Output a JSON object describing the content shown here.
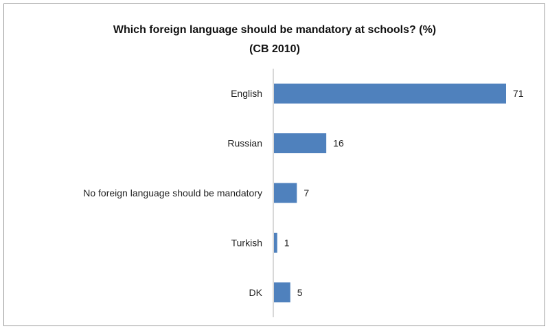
{
  "chart_data": {
    "type": "bar",
    "orientation": "horizontal",
    "title": "Which foreign language should be mandatory at schools? (%)",
    "subtitle": "(CB 2010)",
    "categories": [
      "English",
      "Russian",
      "No foreign language should be mandatory",
      "Turkish",
      "DK"
    ],
    "values": [
      71,
      16,
      7,
      1,
      5
    ],
    "xlim": [
      0,
      71
    ],
    "grid": false,
    "legend": "none",
    "bar_color": "#4f81bd",
    "axis_color": "#b0b0b0"
  }
}
